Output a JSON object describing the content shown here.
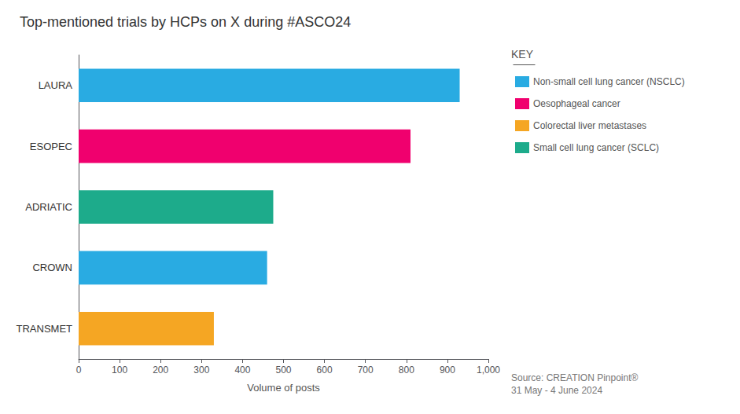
{
  "chart_data": {
    "type": "bar",
    "orientation": "horizontal",
    "stacked": true,
    "title": "Top-mentioned trials by HCPs on X during #ASCO24",
    "categories": [
      "TRANSMET",
      "CROWN",
      "ADRIATIC",
      "ESOPEC",
      "LAURA"
    ],
    "series": [
      {
        "name": "Non-small cell lung cancer (NSCLC)",
        "color": "#29ABE2",
        "values": [
          null,
          460,
          null,
          null,
          930
        ]
      },
      {
        "name": "Oesophageal cancer",
        "color": "#F0006E",
        "values": [
          null,
          null,
          null,
          810,
          null
        ]
      },
      {
        "name": "Colorectal liver metastases",
        "color": "#F5A623",
        "values": [
          330,
          null,
          null,
          null,
          null
        ]
      },
      {
        "name": "Small cell lung cancer (SCLC)",
        "color": "#1DAB8B",
        "values": [
          null,
          null,
          475,
          null,
          null
        ]
      }
    ],
    "xlim": [
      0,
      1000
    ],
    "xticks": [
      0,
      100,
      200,
      300,
      400,
      500,
      600,
      700,
      800,
      900,
      {
        "value": 1000,
        "label": "1,000"
      }
    ],
    "xlabel": "Volume of posts",
    "grid": false,
    "legend": "right",
    "annotations": [
      "KEY",
      "Source: CREATION Pinpoint®\n31 May - 4 June 2024"
    ]
  }
}
